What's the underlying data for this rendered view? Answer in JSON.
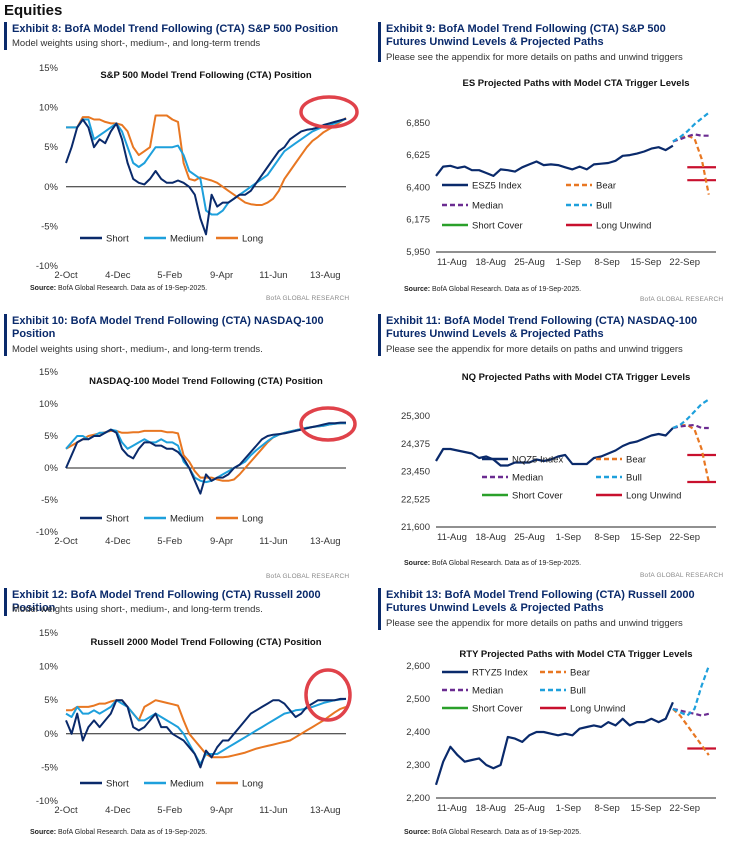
{
  "section_title": "Equities",
  "source_text": "BofA Global Research.  Data as of 19-Sep-2025.",
  "source_label": "Source:",
  "brand": "BofA GLOBAL RESEARCH",
  "highlight_color": "#e0424a",
  "colors": {
    "short": "#0a2a6b",
    "medium": "#1ea0dc",
    "long": "#e87722",
    "bear": "#e87722",
    "bull": "#1ea0dc",
    "median": "#6b2c91",
    "short_cover": "#2aa02a",
    "long_unwind": "#c8102e"
  },
  "exhibits": [
    {
      "id": "ex8",
      "title": "Exhibit 8: BofA Model Trend Following (CTA) S&P 500 Position",
      "subtitle": "Model weights using short-, medium-, and long-term trends"
    },
    {
      "id": "ex9",
      "title": "Exhibit 9: BofA Model Trend Following (CTA) S&P 500 Futures Unwind Levels & Projected Paths",
      "subtitle": "Please see the appendix for more details on paths and unwind triggers"
    },
    {
      "id": "ex10",
      "title": "Exhibit 10: BofA Model Trend Following (CTA) NASDAQ-100 Position",
      "subtitle": "Model weights using short-, medium-, and long-term trends."
    },
    {
      "id": "ex11",
      "title": "Exhibit 11: BofA Model Trend Following (CTA) NASDAQ-100 Futures Unwind Levels & Projected Paths",
      "subtitle": "Please see the appendix for more details on paths and unwind triggers"
    },
    {
      "id": "ex12",
      "title": "Exhibit 12: BofA Model Trend Following (CTA) Russell 2000 Position",
      "subtitle": "Model weights using short-, medium-, and long-term trends."
    },
    {
      "id": "ex13",
      "title": "Exhibit 13: BofA Model Trend Following (CTA) Russell 2000 Futures Unwind Levels & Projected Paths",
      "subtitle": "Please see the appendix for more details on paths and unwind triggers"
    }
  ],
  "chart_data": [
    {
      "id": "c8",
      "type": "line",
      "title": "S&P 500 Model Trend Following (CTA) Position",
      "ylim": [
        -10,
        15
      ],
      "yticks": [
        "15%",
        "10%",
        "5%",
        "0%",
        "-5%",
        "-10%"
      ],
      "ytick_values": [
        15,
        10,
        5,
        0,
        -5,
        -10
      ],
      "xticks": [
        "2-Oct",
        "4-Dec",
        "5-Feb",
        "9-Apr",
        "11-Jun",
        "13-Aug"
      ],
      "x": [
        0,
        1,
        2,
        3,
        4,
        5,
        6,
        7,
        8,
        9,
        10,
        11,
        12,
        13,
        14,
        15,
        16,
        17,
        18,
        19,
        20,
        21,
        22,
        23,
        24,
        25,
        26,
        27,
        28,
        29,
        30,
        31,
        32,
        33,
        34,
        35,
        36,
        37,
        38,
        39,
        40,
        41,
        42,
        43,
        44,
        45,
        46,
        47,
        48,
        49,
        50
      ],
      "legend": [
        "Short",
        "Medium",
        "Long"
      ],
      "series": [
        {
          "name": "Short",
          "values": [
            3,
            5,
            7.5,
            8.5,
            7.5,
            5,
            6,
            5.5,
            7,
            8,
            6,
            3,
            1,
            0.5,
            0.3,
            1,
            2,
            1,
            0.5,
            0.5,
            0.8,
            0.5,
            0,
            -1,
            -4,
            -6,
            -1,
            -2.5,
            -2,
            -2,
            -1.5,
            -1,
            -1,
            -0.5,
            0.5,
            1.5,
            2.5,
            3.5,
            4.5,
            5,
            6,
            6.5,
            7,
            7.2,
            7.3,
            7.5,
            7.8,
            8,
            8.2,
            8.4,
            8.6
          ]
        },
        {
          "name": "Medium",
          "values": [
            7.5,
            7.5,
            7.5,
            8.5,
            8.5,
            6,
            6.5,
            7,
            7.5,
            8,
            7,
            5,
            3,
            2.5,
            3,
            4,
            5,
            5,
            5,
            5,
            5.2,
            4,
            2,
            1.5,
            1,
            -3,
            -3.5,
            -3.5,
            -3,
            -2,
            -1.5,
            -1,
            -0.5,
            0,
            0.5,
            1,
            1.5,
            2.5,
            3.5,
            4.5,
            5,
            5.5,
            6,
            6.5,
            7,
            7.3,
            7.6,
            7.8,
            8,
            8.3,
            8.6
          ]
        },
        {
          "name": "Long",
          "values": [
            7.5,
            7.5,
            7.5,
            8.8,
            8.8,
            8.5,
            8.5,
            8.2,
            8,
            8,
            7.8,
            7,
            5,
            4,
            4.5,
            5,
            9,
            9,
            9,
            8.5,
            8.2,
            3,
            1,
            0.8,
            1.2,
            1,
            0.8,
            0.5,
            0,
            -0.5,
            -1,
            -1.5,
            -2,
            -2.2,
            -2.3,
            -2.3,
            -2,
            -1.5,
            -0.5,
            1,
            2,
            3,
            4,
            5,
            5.8,
            6.3,
            6.9,
            7.3,
            7.7,
            8.2,
            8.7
          ]
        }
      ]
    },
    {
      "id": "c9",
      "type": "line",
      "title": "ES Projected Paths with Model CTA Trigger Levels",
      "ylim": [
        5950,
        6925
      ],
      "yticks": [
        "6,850",
        "6,625",
        "6,400",
        "6,175",
        "5,950"
      ],
      "ytick_values": [
        6850,
        6625,
        6400,
        6175,
        5950
      ],
      "xticks": [
        "11-Aug",
        "18-Aug",
        "25-Aug",
        "1-Sep",
        "8-Sep",
        "15-Sep",
        "22-Sep"
      ],
      "legend": [
        "ESZ5 Index",
        "Bear",
        "Median",
        "Bull",
        "Short Cover",
        "Long Unwind"
      ],
      "index": {
        "name": "ESZ5 Index",
        "values": [
          6480,
          6545,
          6550,
          6535,
          6545,
          6520,
          6520,
          6500,
          6480,
          6525,
          6520,
          6510,
          6540,
          6560,
          6580,
          6555,
          6560,
          6555,
          6540,
          6525,
          6545,
          6525,
          6560,
          6565,
          6570,
          6585,
          6620,
          6625,
          6635,
          6650,
          6670,
          6680,
          6660,
          6690
        ]
      },
      "projections": [
        {
          "name": "Bear",
          "values": [
            6720,
            6740,
            6760,
            6740,
            6600,
            6350
          ]
        },
        {
          "name": "Median",
          "values": [
            6720,
            6735,
            6755,
            6770,
            6760,
            6760
          ]
        },
        {
          "name": "Bull",
          "values": [
            6720,
            6750,
            6790,
            6840,
            6880,
            6920
          ]
        }
      ],
      "triggers": [
        {
          "name": "Long Unwind",
          "value": 6540
        },
        {
          "name": "Long Unwind",
          "value": 6450
        }
      ]
    },
    {
      "id": "c10",
      "type": "line",
      "title": "NASDAQ-100 Model Trend Following (CTA) Position",
      "ylim": [
        -10,
        15
      ],
      "yticks": [
        "15%",
        "10%",
        "5%",
        "0%",
        "-5%",
        "-10%"
      ],
      "ytick_values": [
        15,
        10,
        5,
        0,
        -5,
        -10
      ],
      "xticks": [
        "2-Oct",
        "4-Dec",
        "5-Feb",
        "9-Apr",
        "11-Jun",
        "13-Aug"
      ],
      "legend": [
        "Short",
        "Medium",
        "Long"
      ],
      "series": [
        {
          "name": "Short",
          "values": [
            0,
            2,
            4,
            4.5,
            4.5,
            5,
            5,
            5.5,
            6,
            5.5,
            3,
            2,
            1.5,
            3,
            4,
            4,
            3.5,
            3.5,
            3,
            3,
            2.5,
            1.5,
            0,
            -2,
            -4,
            -1,
            -2,
            -1.5,
            -1.5,
            -1,
            0,
            0.5,
            1.5,
            2.5,
            3.5,
            4.5,
            5,
            5.2,
            5.3,
            5.4,
            5.6,
            5.8,
            6,
            6.2,
            6.4,
            6.6,
            6.8,
            7,
            7,
            7.1,
            7.1
          ]
        },
        {
          "name": "Medium",
          "values": [
            3,
            4,
            5,
            5,
            4.5,
            5,
            5.5,
            5.5,
            6,
            5.8,
            4,
            3,
            3.5,
            4,
            4.5,
            4,
            4,
            4.5,
            4,
            4,
            3.5,
            1,
            0,
            -1.5,
            -2,
            -2.2,
            -2,
            -1.5,
            -1,
            -0.5,
            0,
            0.5,
            1,
            2,
            2.8,
            3.5,
            4.2,
            4.8,
            5.2,
            5.5,
            5.7,
            5.9,
            6.1,
            6.3,
            6.4,
            6.5,
            6.6,
            6.8,
            6.9,
            7,
            7
          ]
        },
        {
          "name": "Long",
          "values": [
            3,
            3.5,
            4,
            4.5,
            5,
            5.2,
            5.4,
            5.6,
            5.8,
            5.8,
            5.5,
            5.5,
            5.6,
            5.6,
            5.8,
            5.8,
            5.8,
            5.8,
            5.6,
            5.6,
            5.4,
            2,
            1,
            -0.5,
            -1.5,
            -1.5,
            -1.5,
            -1.8,
            -2,
            -2,
            -1.8,
            -1,
            0,
            1,
            2,
            3,
            4,
            4.8,
            5.2,
            5.5,
            5.7,
            5.9,
            6.1,
            6.3,
            6.4,
            6.5,
            6.6,
            6.8,
            6.9,
            7,
            7
          ]
        }
      ]
    },
    {
      "id": "c11",
      "type": "line",
      "title": "NQ Projected Paths with Model CTA Trigger Levels",
      "ylim": [
        21600,
        25900
      ],
      "yticks": [
        "25,300",
        "24,375",
        "23,450",
        "22,525",
        "21,600"
      ],
      "ytick_values": [
        25300,
        24375,
        23450,
        22525,
        21600
      ],
      "xticks": [
        "11-Aug",
        "18-Aug",
        "25-Aug",
        "1-Sep",
        "8-Sep",
        "15-Sep",
        "22-Sep"
      ],
      "legend": [
        "NQZ5 Index",
        "Bear",
        "Median",
        "Bull",
        "Short Cover",
        "Long Unwind"
      ],
      "index": {
        "name": "NQZ5 Index",
        "values": [
          23800,
          24200,
          24200,
          24150,
          24100,
          24050,
          23900,
          23950,
          23850,
          23650,
          23650,
          23750,
          23750,
          23750,
          23850,
          23800,
          23850,
          23950,
          24000,
          23700,
          23700,
          23700,
          23900,
          23950,
          24050,
          24150,
          24300,
          24400,
          24450,
          24550,
          24650,
          24700,
          24650,
          24900
        ]
      },
      "projections": [
        {
          "name": "Bear",
          "values": [
            24900,
            24980,
            25000,
            24850,
            24200,
            23100
          ]
        },
        {
          "name": "Median",
          "values": [
            24900,
            24950,
            24980,
            25000,
            24900,
            24900
          ]
        },
        {
          "name": "Bull",
          "values": [
            24900,
            25000,
            25200,
            25450,
            25700,
            25850
          ]
        }
      ],
      "triggers": [
        {
          "name": "Long Unwind",
          "value": 24000
        },
        {
          "name": "Long Unwind",
          "value": 23100
        }
      ]
    },
    {
      "id": "c12",
      "type": "line",
      "title": "Russell 2000 Model Trend Following (CTA) Position",
      "ylim": [
        -10,
        15
      ],
      "yticks": [
        "15%",
        "10%",
        "5%",
        "0%",
        "-5%",
        "-10%"
      ],
      "ytick_values": [
        15,
        10,
        5,
        0,
        -5,
        -10
      ],
      "xticks": [
        "2-Oct",
        "4-Dec",
        "5-Feb",
        "9-Apr",
        "11-Jun",
        "13-Aug"
      ],
      "legend": [
        "Short",
        "Medium",
        "Long"
      ],
      "series": [
        {
          "name": "Short",
          "values": [
            2,
            0,
            3,
            -1,
            1,
            2,
            1,
            2,
            3,
            5,
            5,
            4,
            1,
            0.5,
            1,
            2,
            3,
            1,
            1,
            0,
            -0.5,
            -1,
            -2,
            -3,
            -5,
            -2.5,
            -3.5,
            -2,
            -1,
            -1,
            0,
            1,
            2,
            3,
            3.5,
            4,
            4.5,
            5,
            5,
            4.5,
            3.5,
            2.5,
            3,
            4,
            4.5,
            5,
            5,
            5,
            5,
            5.2,
            5.2
          ]
        },
        {
          "name": "Medium",
          "values": [
            3,
            2.5,
            4,
            3,
            3,
            3.5,
            3,
            3.5,
            4,
            5,
            4.5,
            4,
            3,
            2,
            2,
            2.5,
            3,
            2.5,
            2,
            1.5,
            1,
            0,
            -1.5,
            -3,
            -4.5,
            -3,
            -3,
            -3,
            -2.5,
            -2,
            -1.5,
            -1,
            -0.5,
            0,
            0.5,
            1,
            1.5,
            2,
            2.5,
            3,
            3.2,
            3.5,
            3.6,
            3.8,
            4,
            4.3,
            4.6,
            4.8,
            5,
            5.1,
            5.2
          ]
        },
        {
          "name": "Long",
          "values": [
            3.5,
            3.5,
            4,
            4,
            4,
            4.2,
            4.5,
            4.5,
            4.8,
            5,
            5,
            4,
            3,
            2,
            4,
            4.5,
            5,
            4.8,
            4.6,
            4.4,
            4.2,
            2,
            0,
            -1,
            -2,
            -3,
            -3.5,
            -3.5,
            -3.5,
            -3.4,
            -3.2,
            -3,
            -2.8,
            -2.5,
            -2.2,
            -2,
            -1.8,
            -1.6,
            -1.4,
            -1.2,
            -1,
            -0.5,
            0,
            0.5,
            1,
            1.5,
            2,
            2.6,
            3.2,
            3.7,
            4
          ]
        }
      ]
    },
    {
      "id": "c13",
      "type": "line",
      "title": "RTY Projected Paths with Model CTA Trigger Levels",
      "ylim": [
        2200,
        2600
      ],
      "yticks": [
        "2,600",
        "2,500",
        "2,400",
        "2,300",
        "2,200"
      ],
      "ytick_values": [
        2600,
        2500,
        2400,
        2300,
        2200
      ],
      "xticks": [
        "11-Aug",
        "18-Aug",
        "25-Aug",
        "1-Sep",
        "8-Sep",
        "15-Sep",
        "22-Sep"
      ],
      "legend": [
        "RTYZ5 Index",
        "Bear",
        "Median",
        "Bull",
        "Short Cover",
        "Long Unwind"
      ],
      "index": {
        "name": "RTYZ5 Index",
        "values": [
          2240,
          2310,
          2355,
          2330,
          2310,
          2315,
          2320,
          2300,
          2290,
          2300,
          2385,
          2380,
          2370,
          2390,
          2400,
          2400,
          2395,
          2390,
          2395,
          2390,
          2410,
          2415,
          2420,
          2415,
          2430,
          2420,
          2440,
          2420,
          2430,
          2430,
          2440,
          2430,
          2440,
          2490
        ]
      },
      "projections": [
        {
          "name": "Bear",
          "values": [
            2470,
            2450,
            2420,
            2390,
            2360,
            2330
          ]
        },
        {
          "name": "Median",
          "values": [
            2470,
            2465,
            2460,
            2455,
            2450,
            2455
          ]
        },
        {
          "name": "Bull",
          "values": [
            2470,
            2460,
            2450,
            2470,
            2540,
            2600
          ]
        }
      ],
      "triggers": [
        {
          "name": "Long Unwind",
          "value": 2350
        }
      ]
    }
  ]
}
